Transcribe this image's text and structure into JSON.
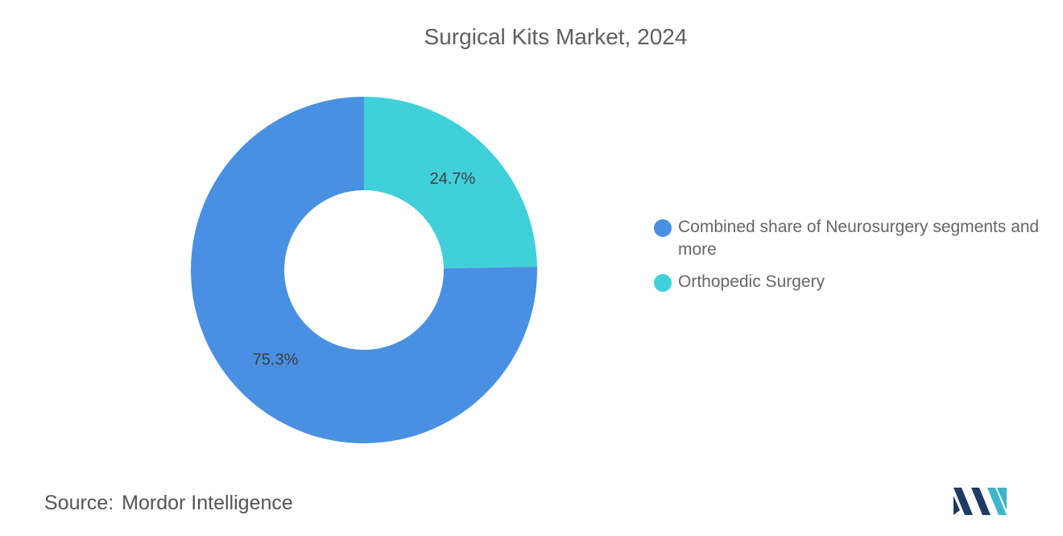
{
  "chart_data": {
    "type": "pie",
    "title": "Surgical Kits Market, 2024",
    "donut": true,
    "slices": [
      {
        "label": "Orthopedic Surgery",
        "value": 24.7,
        "value_label": "24.7%",
        "color": "#40D0DA"
      },
      {
        "label": "Combined share of Neurosurgery segments and more",
        "value": 75.3,
        "value_label": "75.3%",
        "color": "#4A90E2"
      }
    ],
    "legend": [
      {
        "label": "Combined share of Neurosurgery segments and more",
        "color": "#4A90E2"
      },
      {
        "label": "Orthopedic Surgery",
        "color": "#40D0DA"
      }
    ],
    "legend_position": "right"
  },
  "source": {
    "label": "Source:",
    "text": "Mordor Intelligence"
  },
  "logo": {
    "icon": "mordor-intelligence-logo-icon",
    "colors": [
      "#1F3B63",
      "#3FB7C8"
    ]
  }
}
